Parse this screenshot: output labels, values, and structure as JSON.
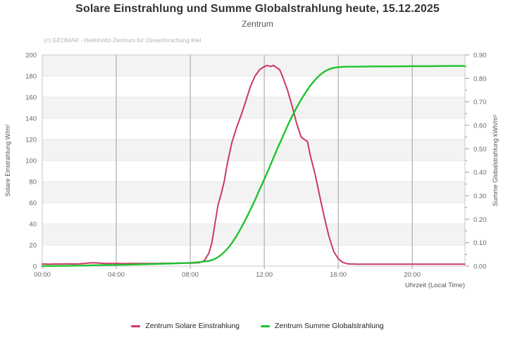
{
  "title": "Solare Einstrahlung und Summe Globalstrahlung heute, 15.12.2025",
  "subtitle": "Zentrum",
  "copyright": "(c) GEOMAR - Helmholtz-Zentrum für Ozeanforschung Kiel",
  "colors": {
    "solare_einstrahlung": "#cb3a62",
    "summe_globalstrahlung": "#1fc32f",
    "band_gray": "#f3f3f3",
    "h_gridline": "#e7e7e7",
    "v_gridline": "#a0a0a0",
    "plot_border": "#c9c9c9",
    "tick_mark": "#999999"
  },
  "chart_data": {
    "type": "line",
    "title": "Solare Einstrahlung und Summe Globalstrahlung heute, 15.12.2025",
    "subtitle": "Zentrum",
    "x_axis": {
      "label": "Uhrzeit (Local Time)",
      "ticks": [
        "00:00",
        "04:00",
        "08:00",
        "12:00",
        "16:00",
        "20:00"
      ],
      "range_hours": [
        0,
        22.85
      ],
      "gridline_hours": [
        4,
        8,
        12,
        16,
        20
      ]
    },
    "y_left": {
      "label": "Solare Einstrahlung W/m²",
      "ticks": [
        "0",
        "20",
        "40",
        "60",
        "80",
        "100",
        "120",
        "140",
        "160",
        "180",
        "200"
      ],
      "range": [
        0,
        200
      ],
      "major_step": 20
    },
    "y_right": {
      "label": "Summe Globalstrahlung kWh/m²",
      "ticks": [
        "0.00",
        "0.10",
        "0.20",
        "0.30",
        "0.40",
        "0.50",
        "0.60",
        "0.70",
        "0.80",
        "0.90"
      ],
      "range": [
        0,
        0.9
      ],
      "major_step": 0.1,
      "minor_step": 0.05
    },
    "legend": [
      {
        "label": "Zentrum Solare Einstrahlung",
        "color": "#cb3a62"
      },
      {
        "label": "Zentrum Summe Globalstrahlung",
        "color": "#1fc32f"
      }
    ],
    "series": [
      {
        "name": "Zentrum Solare Einstrahlung",
        "axis": "left",
        "unit": "W/m²",
        "color": "#cb3a62",
        "points": [
          [
            "00:00",
            2
          ],
          [
            "00:20",
            1.8
          ],
          [
            "00:40",
            2
          ],
          [
            "01:00",
            2
          ],
          [
            "01:20",
            2.2
          ],
          [
            "01:40",
            2
          ],
          [
            "02:00",
            2.2
          ],
          [
            "02:20",
            2.6
          ],
          [
            "02:40",
            3.2
          ],
          [
            "03:00",
            3
          ],
          [
            "03:20",
            2.5
          ],
          [
            "03:40",
            2.5
          ],
          [
            "04:00",
            2.5
          ],
          [
            "04:30",
            2.4
          ],
          [
            "05:00",
            2.5
          ],
          [
            "05:30",
            2.5
          ],
          [
            "06:00",
            2.5
          ],
          [
            "06:30",
            2.6
          ],
          [
            "07:00",
            2.7
          ],
          [
            "07:30",
            2.8
          ],
          [
            "08:00",
            2.8
          ],
          [
            "08:15",
            3
          ],
          [
            "08:30",
            3.3
          ],
          [
            "08:45",
            5
          ],
          [
            "09:00",
            12
          ],
          [
            "09:10",
            22
          ],
          [
            "09:20",
            40
          ],
          [
            "09:30",
            58
          ],
          [
            "09:40",
            68
          ],
          [
            "09:50",
            80
          ],
          [
            "10:00",
            97
          ],
          [
            "10:15",
            117
          ],
          [
            "10:30",
            131
          ],
          [
            "10:45",
            143
          ],
          [
            "11:00",
            156
          ],
          [
            "11:15",
            170
          ],
          [
            "11:30",
            180
          ],
          [
            "11:45",
            186
          ],
          [
            "12:00",
            189
          ],
          [
            "12:10",
            190
          ],
          [
            "12:20",
            189
          ],
          [
            "12:30",
            190
          ],
          [
            "12:40",
            188
          ],
          [
            "12:50",
            186
          ],
          [
            "13:00",
            179
          ],
          [
            "13:15",
            167
          ],
          [
            "13:30",
            152
          ],
          [
            "13:45",
            135
          ],
          [
            "14:00",
            122
          ],
          [
            "14:10",
            120
          ],
          [
            "14:20",
            118
          ],
          [
            "14:30",
            104
          ],
          [
            "14:45",
            87
          ],
          [
            "15:00",
            66
          ],
          [
            "15:15",
            46
          ],
          [
            "15:30",
            28
          ],
          [
            "15:45",
            14
          ],
          [
            "16:00",
            7
          ],
          [
            "16:15",
            3.5
          ],
          [
            "16:30",
            2.2
          ],
          [
            "17:00",
            1.8
          ],
          [
            "18:00",
            1.8
          ],
          [
            "19:00",
            1.8
          ],
          [
            "20:00",
            1.8
          ],
          [
            "21:00",
            1.8
          ],
          [
            "22:00",
            1.8
          ],
          [
            "22:50",
            1.8
          ]
        ]
      },
      {
        "name": "Zentrum Summe Globalstrahlung",
        "axis": "right",
        "unit": "kWh/m²",
        "color": "#1fc32f",
        "points": [
          [
            "00:00",
            0
          ],
          [
            "01:00",
            0.001
          ],
          [
            "02:00",
            0.002
          ],
          [
            "03:00",
            0.004
          ],
          [
            "04:00",
            0.005
          ],
          [
            "05:00",
            0.007
          ],
          [
            "06:00",
            0.009
          ],
          [
            "07:00",
            0.011
          ],
          [
            "08:00",
            0.014
          ],
          [
            "08:30",
            0.017
          ],
          [
            "09:00",
            0.022
          ],
          [
            "09:15",
            0.028
          ],
          [
            "09:30",
            0.038
          ],
          [
            "09:45",
            0.053
          ],
          [
            "10:00",
            0.073
          ],
          [
            "10:15",
            0.098
          ],
          [
            "10:30",
            0.128
          ],
          [
            "10:45",
            0.163
          ],
          [
            "11:00",
            0.2
          ],
          [
            "11:15",
            0.24
          ],
          [
            "11:30",
            0.282
          ],
          [
            "11:45",
            0.326
          ],
          [
            "12:00",
            0.37
          ],
          [
            "12:15",
            0.415
          ],
          [
            "12:30",
            0.462
          ],
          [
            "12:45",
            0.508
          ],
          [
            "13:00",
            0.552
          ],
          [
            "13:15",
            0.596
          ],
          [
            "13:30",
            0.638
          ],
          [
            "13:45",
            0.676
          ],
          [
            "14:00",
            0.71
          ],
          [
            "14:15",
            0.742
          ],
          [
            "14:30",
            0.77
          ],
          [
            "14:45",
            0.794
          ],
          [
            "15:00",
            0.814
          ],
          [
            "15:15",
            0.829
          ],
          [
            "15:30",
            0.839
          ],
          [
            "15:45",
            0.845
          ],
          [
            "16:00",
            0.848
          ],
          [
            "16:30",
            0.85
          ],
          [
            "17:00",
            0.85
          ],
          [
            "18:00",
            0.851
          ],
          [
            "19:00",
            0.851
          ],
          [
            "20:00",
            0.852
          ],
          [
            "21:00",
            0.852
          ],
          [
            "22:00",
            0.853
          ],
          [
            "22:50",
            0.853
          ]
        ]
      }
    ],
    "layout_hints": {
      "grid": "on",
      "alternating_bands": true,
      "legend_position": "bottom-center"
    }
  }
}
